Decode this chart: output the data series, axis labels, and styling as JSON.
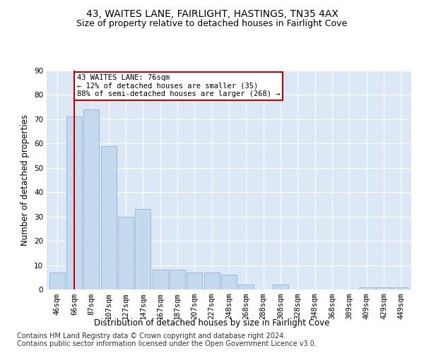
{
  "title": "43, WAITES LANE, FAIRLIGHT, HASTINGS, TN35 4AX",
  "subtitle": "Size of property relative to detached houses in Fairlight Cove",
  "xlabel": "Distribution of detached houses by size in Fairlight Cove",
  "ylabel": "Number of detached properties",
  "categories": [
    "46sqm",
    "66sqm",
    "87sqm",
    "107sqm",
    "127sqm",
    "147sqm",
    "167sqm",
    "187sqm",
    "207sqm",
    "227sqm",
    "248sqm",
    "268sqm",
    "288sqm",
    "308sqm",
    "328sqm",
    "348sqm",
    "368sqm",
    "389sqm",
    "409sqm",
    "429sqm",
    "449sqm"
  ],
  "values": [
    7,
    71,
    74,
    59,
    30,
    33,
    8,
    8,
    7,
    7,
    6,
    2,
    0,
    2,
    0,
    0,
    0,
    0,
    1,
    1,
    1
  ],
  "bar_color": "#c5d9ee",
  "bar_edge_color": "#8ab4d4",
  "highlight_index": 1,
  "highlight_line_color": "#cc0000",
  "ylim": [
    0,
    90
  ],
  "yticks": [
    0,
    10,
    20,
    30,
    40,
    50,
    60,
    70,
    80,
    90
  ],
  "annotation_text": "43 WAITES LANE: 76sqm\n← 12% of detached houses are smaller (35)\n88% of semi-detached houses are larger (268) →",
  "annotation_box_color": "#ffffff",
  "annotation_box_edge": "#cc0000",
  "footer_line1": "Contains HM Land Registry data © Crown copyright and database right 2024.",
  "footer_line2": "Contains public sector information licensed under the Open Government Licence v3.0.",
  "bg_color": "#ffffff",
  "plot_bg_color": "#dce8f5",
  "grid_color": "#ffffff",
  "title_fontsize": 10,
  "subtitle_fontsize": 9,
  "axis_label_fontsize": 8.5,
  "tick_fontsize": 7.5,
  "footer_fontsize": 7
}
